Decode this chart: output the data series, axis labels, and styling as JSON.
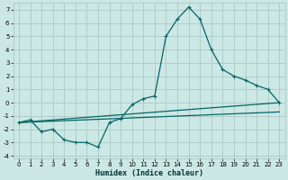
{
  "xlabel": "Humidex (Indice chaleur)",
  "bg_color": "#cce8e4",
  "grid_color": "#aac8c4",
  "line_color": "#006666",
  "xlim": [
    -0.5,
    23.5
  ],
  "ylim": [
    -4.2,
    7.5
  ],
  "xticks": [
    0,
    1,
    2,
    3,
    4,
    5,
    6,
    7,
    8,
    9,
    10,
    11,
    12,
    13,
    14,
    15,
    16,
    17,
    18,
    19,
    20,
    21,
    22,
    23
  ],
  "yticks": [
    -4,
    -3,
    -2,
    -1,
    0,
    1,
    2,
    3,
    4,
    5,
    6,
    7
  ],
  "curve_x": [
    0,
    1,
    2,
    3,
    4,
    5,
    6,
    7,
    8,
    9,
    10,
    11,
    12,
    13,
    14,
    15,
    16,
    17,
    18,
    19,
    20,
    21,
    22,
    23
  ],
  "curve_y": [
    -1.5,
    -1.3,
    -2.2,
    -2.0,
    -2.8,
    -3.0,
    -3.0,
    -3.35,
    -1.5,
    -1.2,
    -0.15,
    0.3,
    0.5,
    5.0,
    6.3,
    7.2,
    6.3,
    4.0,
    2.5,
    2.0,
    1.7,
    1.3,
    1.0,
    0.0
  ],
  "line2_x": [
    0,
    23
  ],
  "line2_y": [
    -1.5,
    0.0
  ],
  "line3_x": [
    0,
    23
  ],
  "line3_y": [
    -1.5,
    -0.7
  ],
  "curve_lw": 0.9,
  "marker_size": 2.5,
  "tick_fontsize": 5.0,
  "xlabel_fontsize": 6.0
}
